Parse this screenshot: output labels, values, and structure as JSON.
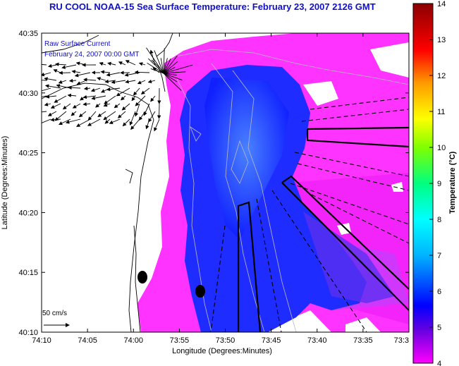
{
  "title": "RU COOL  NOAA-15  Sea Surface Temperature:  February 23, 2007 2126 GMT",
  "current_legend": {
    "line1": "Raw Surface Current",
    "line2": "February 24, 2007 00:00 GMT"
  },
  "scale_label": "50 cm/s",
  "x_axis": {
    "label": "Longitude (Degrees:Minutes)",
    "ticks": [
      "74:10",
      "74:05",
      "74:00",
      "73:55",
      "73:50",
      "73:45",
      "73:40",
      "73:35",
      "73:3"
    ]
  },
  "y_axis": {
    "label": "Latitude (Degrees:Minutes)",
    "ticks": [
      "40:35",
      "40:30",
      "40:25",
      "40:20",
      "40:15",
      "40:10"
    ]
  },
  "colorbar": {
    "label": "Temperature (°C)",
    "ticks": [
      "14",
      "13",
      "12",
      "11",
      "10",
      "9",
      "8",
      "7",
      "6",
      "5",
      "4"
    ],
    "colors": [
      "#ff00ff",
      "#0000ff",
      "#00ffff",
      "#00ff00",
      "#ffff00",
      "#ff8000",
      "#ff0000",
      "#8b0000"
    ]
  },
  "colors": {
    "land": "#ffffff",
    "warm_water": "#ff33ff",
    "cool_water": "#1e2cff",
    "coldest_water": "#3a6cff",
    "title_text": "#1010c8",
    "frame": "#000000"
  }
}
